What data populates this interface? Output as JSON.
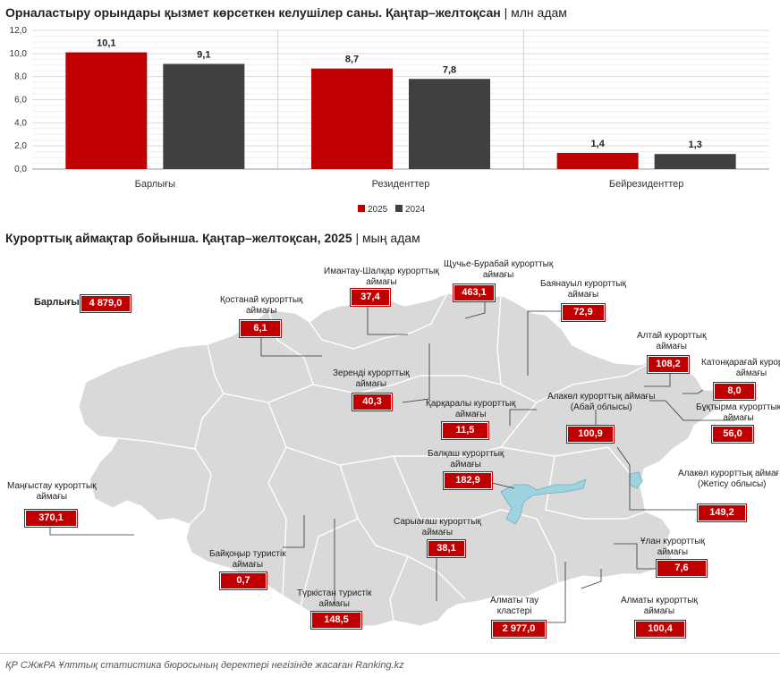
{
  "title1": {
    "main": "Орналастыру орындары қызмет көрсеткен келушілер саны. Қаңтар–желтоқсан",
    "unit": " | млн адам"
  },
  "title2": {
    "main": "Курорттық аймақтар бойынша. Қаңтар–желтоқсан, 2025",
    "unit": " | мың адам"
  },
  "chart_data": [
    {
      "type": "bar",
      "categories": [
        "Барлығы",
        "Резиденттер",
        "Бейрезиденттер"
      ],
      "series": [
        {
          "name": "2025",
          "values": [
            10.1,
            8.7,
            1.4
          ],
          "labels": [
            "10,1",
            "8,7",
            "1,4"
          ],
          "color": "#c00000"
        },
        {
          "name": "2024",
          "values": [
            9.1,
            7.8,
            1.3
          ],
          "labels": [
            "9,1",
            "7,8",
            "1,3"
          ],
          "color": "#404040"
        }
      ],
      "ylim": [
        0,
        12
      ],
      "yticks": [
        "0,0",
        "2,0",
        "4,0",
        "6,0",
        "8,0",
        "10,0",
        "12,0"
      ],
      "grid": true,
      "legend": "bottom-center"
    },
    {
      "type": "table",
      "total": {
        "label": "Барлығы",
        "value": "4 879,0"
      },
      "regions": [
        {
          "name": "Маңғыстау курорттық аймағы",
          "value": "370,1"
        },
        {
          "name": "Қостанай курорттық аймағы",
          "value": "6,1"
        },
        {
          "name": "Имантау-Шалқар курорттық аймағы",
          "value": "37,4"
        },
        {
          "name": "Щучье-Бурабай курорттық аймағы",
          "value": "463,1"
        },
        {
          "name": "Баянауыл курорттық аймағы",
          "value": "72,9"
        },
        {
          "name": "Алтай курорттық аймағы",
          "value": "108,2"
        },
        {
          "name": "Катонқарағай курорттық аймағы",
          "value": "8,0"
        },
        {
          "name": "Бұқтырма курорттық аймағы",
          "value": "56,0"
        },
        {
          "name": "Зеренді курорттық аймағы",
          "value": "40,3"
        },
        {
          "name": "Қарқаралы курорттық аймағы",
          "value": "11,5"
        },
        {
          "name": "Алакөл курорттық аймағы (Абай облысы)",
          "value": "100,9"
        },
        {
          "name": "Балқаш курорттық аймағы",
          "value": "182,9"
        },
        {
          "name": "Алакөл курорттық аймағы (Жетісу облысы)",
          "value": "149,2"
        },
        {
          "name": "Байқоңыр туристік аймағы",
          "value": "0,7"
        },
        {
          "name": "Сарыағаш курорттық аймағы",
          "value": "38,1"
        },
        {
          "name": "Түркістан туристік аймағы",
          "value": "148,5"
        },
        {
          "name": "Алматы тау кластері",
          "value": "2 977,0"
        },
        {
          "name": "Алматы курорттық аймағы",
          "value": "100,4"
        },
        {
          "name": "Ұлан курорттық аймағы",
          "value": "7,6"
        }
      ]
    }
  ],
  "footnote": "ҚР СЖжРА Ұлттық статистика бюросының деректері негізінде жасаған Ranking.kz",
  "colors": {
    "accent": "#c00000",
    "dark": "#404040",
    "map": "#d9d9d9",
    "water": "#9fd3e0"
  }
}
